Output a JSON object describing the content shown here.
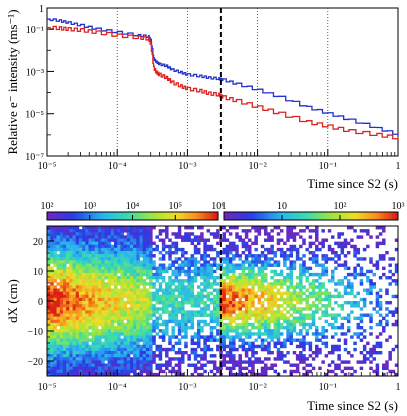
{
  "chart_data": [
    {
      "type": "line",
      "xlabel": "Time since S2 (s)",
      "ylabel": "Relative e⁻ intensity (ms⁻¹)",
      "x_scale": "log",
      "y_scale": "log",
      "xlim": [
        1e-05,
        1
      ],
      "ylim": [
        1e-07,
        1
      ],
      "x_tick_labels": [
        "10⁻⁵",
        "10⁻⁴",
        "10⁻³",
        "10⁻²",
        "10⁻¹",
        "1"
      ],
      "y_tick_labels": [
        "10⁻⁷",
        "10⁻⁵",
        "10⁻³",
        "10⁻¹",
        "1"
      ],
      "vertical_gridlines_at_x": [
        0.0001,
        0.001,
        0.01,
        0.1
      ],
      "dashed_marker_x": 0.003,
      "series": [
        {
          "color": "#2233cc",
          "x": [
            1e-05,
            1.5e-05,
            2e-05,
            3e-05,
            5e-05,
            0.0001,
            0.0002,
            0.00028,
            0.0003,
            0.00033,
            0.00036,
            0.0004,
            0.0005,
            0.0006,
            0.0008,
            0.001,
            0.0015,
            0.002,
            0.0028,
            0.0032,
            0.005,
            0.01,
            0.02,
            0.05,
            0.1,
            0.2,
            0.5,
            1
          ],
          "y": [
            0.3,
            0.25,
            0.2,
            0.15,
            0.1,
            0.07,
            0.05,
            0.045,
            0.03,
            0.004,
            0.0028,
            0.0022,
            0.0018,
            0.0012,
            0.0009,
            0.0007,
            0.0006,
            0.0005,
            0.00045,
            0.0004,
            0.00025,
            0.00013,
            6e-05,
            2e-05,
            1e-05,
            5e-06,
            2e-06,
            1e-06
          ]
        },
        {
          "color": "#dd2222",
          "x": [
            1e-05,
            1.5e-05,
            2e-05,
            3e-05,
            5e-05,
            0.0001,
            0.0002,
            0.00028,
            0.0003,
            0.00033,
            0.00036,
            0.0004,
            0.0005,
            0.0006,
            0.0008,
            0.001,
            0.0015,
            0.002,
            0.0028,
            0.0032,
            0.005,
            0.01,
            0.02,
            0.05,
            0.1,
            0.2,
            0.5,
            1
          ],
          "y": [
            0.12,
            0.11,
            0.1,
            0.09,
            0.07,
            0.05,
            0.04,
            0.035,
            0.02,
            0.0015,
            0.0009,
            0.0007,
            0.0005,
            0.0003,
            0.0002,
            0.00015,
            0.00012,
            9e-05,
            8e-05,
            6e-05,
            4e-05,
            2e-05,
            1e-05,
            4e-06,
            2.5e-06,
            1.5e-06,
            1e-06,
            7e-07
          ]
        }
      ]
    },
    {
      "type": "heatmap",
      "xlabel": "Time since S2 (s)",
      "ylabel": "dX (cm)",
      "x_scale": "log",
      "xlim": [
        1e-05,
        1
      ],
      "ylim": [
        -25,
        25
      ],
      "x_tick_labels": [
        "10⁻⁵",
        "10⁻⁴",
        "10⁻³",
        "10⁻²",
        "10⁻¹",
        "1"
      ],
      "y_tick_labels": [
        "−20",
        "−10",
        "0",
        "10",
        "20"
      ],
      "dashed_marker_x": 0.003,
      "colorbars": [
        {
          "range": [
            100,
            1000000
          ],
          "tick_labels": [
            "10²",
            "10³",
            "10⁴",
            "10⁵",
            "10⁶"
          ],
          "applies_to_x_range": [
            1e-05,
            0.003
          ]
        },
        {
          "range": [
            1,
            1000
          ],
          "tick_labels": [
            "1",
            "10",
            "10²",
            "10³"
          ],
          "applies_to_x_range": [
            0.003,
            1
          ]
        }
      ],
      "description_data": {
        "peak_dx": 0,
        "spread_dx_sigma_early": 12,
        "spread_dx_sigma_late": 8
      }
    }
  ]
}
